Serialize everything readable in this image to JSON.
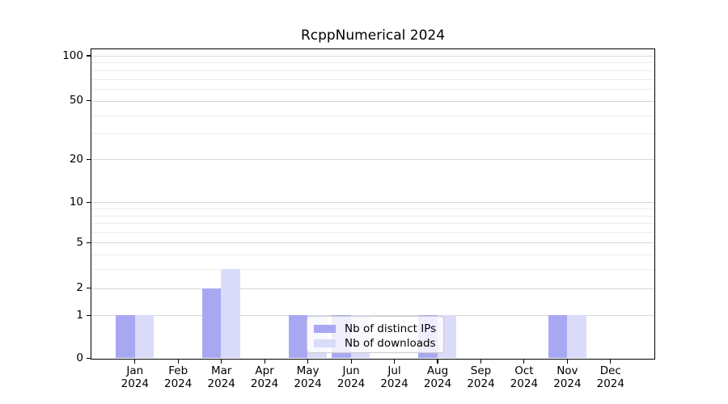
{
  "chart_data": {
    "type": "bar",
    "title": "RcppNumerical 2024",
    "categories": [
      "Jan",
      "Feb",
      "Mar",
      "Apr",
      "May",
      "Jun",
      "Jul",
      "Aug",
      "Sep",
      "Oct",
      "Nov",
      "Dec"
    ],
    "tick_year": "2024",
    "series": [
      {
        "name": "Nb of distinct IPs",
        "color": "#a8a8f2",
        "values": [
          1,
          0,
          2,
          0,
          1,
          1,
          0,
          1,
          0,
          0,
          1,
          0
        ]
      },
      {
        "name": "Nb of downloads",
        "color": "#dadaf9",
        "values": [
          1,
          0,
          3,
          0,
          1,
          1,
          0,
          1,
          0,
          0,
          1,
          0
        ]
      }
    ],
    "yscale": "log1p",
    "ylim": [
      0,
      112
    ],
    "yticks": [
      0,
      1,
      2,
      5,
      10,
      20,
      50,
      100
    ],
    "grid_values": [
      1,
      2,
      3,
      4,
      5,
      6,
      7,
      8,
      9,
      10,
      20,
      30,
      40,
      50,
      60,
      70,
      80,
      90,
      100
    ],
    "grid": true,
    "legend_position": "lower center",
    "colors": {
      "major_grid": "#d7d7d7",
      "minor_grid": "#ececec",
      "axis": "#000000",
      "text": "#000000",
      "background": "#ffffff"
    }
  }
}
